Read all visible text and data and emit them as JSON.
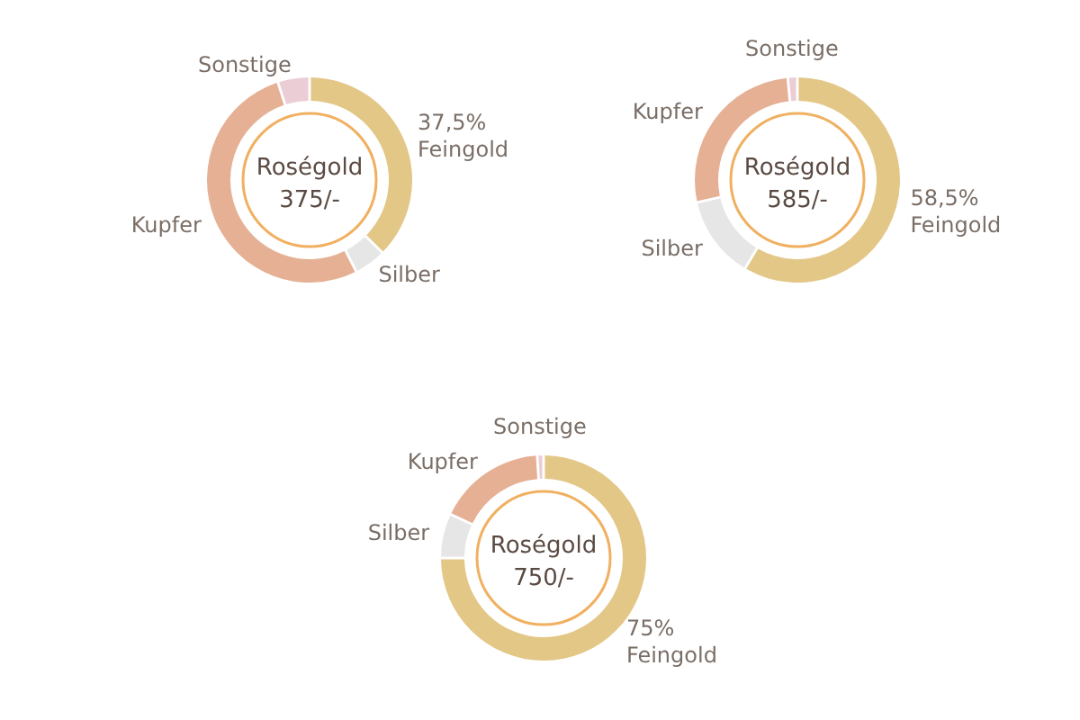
{
  "chart_data": [
    {
      "type": "donut",
      "title": "Roségold",
      "subtitle": "375/-",
      "categories": [
        "Feingold",
        "Silber",
        "Kupfer",
        "Sonstige"
      ],
      "values": [
        37.5,
        5,
        52.5,
        5
      ],
      "colors": [
        "#e3c787",
        "#e6e6e6",
        "#e5b094",
        "#ebcdd6"
      ],
      "value_labels": [
        "37,5%",
        null,
        null,
        null
      ]
    },
    {
      "type": "donut",
      "title": "Roségold",
      "subtitle": "585/-",
      "categories": [
        "Feingold",
        "Silber",
        "Kupfer",
        "Sonstige"
      ],
      "values": [
        58.5,
        13,
        27,
        1.5
      ],
      "colors": [
        "#e3c787",
        "#e6e6e6",
        "#e5b094",
        "#ebcdd6"
      ],
      "value_labels": [
        "58,5%",
        null,
        null,
        null
      ]
    },
    {
      "type": "donut",
      "title": "Roségold",
      "subtitle": "750/-",
      "categories": [
        "Feingold",
        "Silber",
        "Kupfer",
        "Sonstige"
      ],
      "values": [
        75,
        7,
        17,
        1
      ],
      "colors": [
        "#e3c787",
        "#e6e6e6",
        "#e5b094",
        "#ebcdd6"
      ],
      "value_labels": [
        "75%",
        null,
        null,
        null
      ]
    }
  ]
}
